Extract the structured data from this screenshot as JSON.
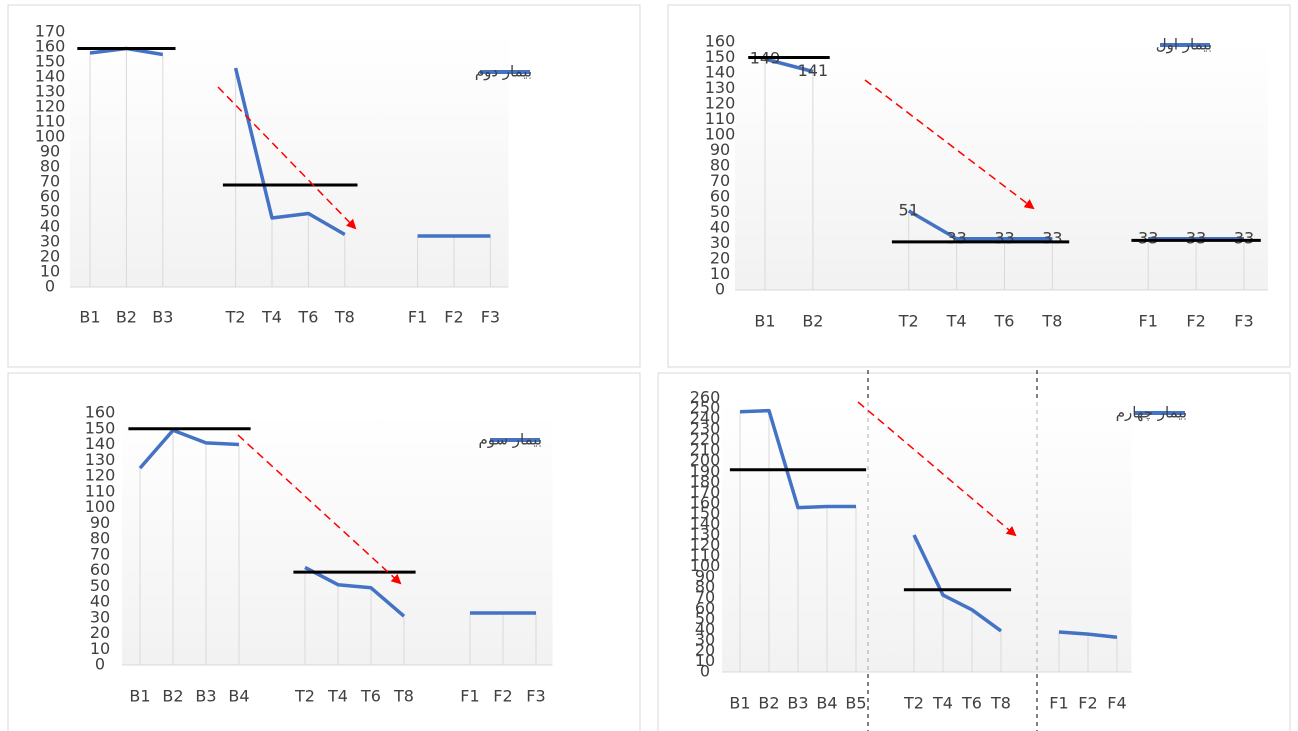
{
  "chart_data": [
    {
      "type": "line",
      "categories": [
        "B1",
        "B2",
        "B3",
        null,
        "T2",
        "T4",
        "T6",
        "T8",
        null,
        "F1",
        "F2",
        "F3"
      ],
      "series": [
        {
          "name": "بیمار دوم",
          "color": "#4472c4",
          "values": [
            156,
            159,
            155,
            null,
            146,
            46,
            49,
            35,
            null,
            34,
            34,
            34
          ]
        },
        {
          "color": "#000000",
          "values": [
            159,
            159,
            159,
            null,
            68,
            68,
            68,
            68,
            null,
            null,
            null,
            null
          ]
        }
      ],
      "ylim": [
        0,
        170
      ],
      "yticks": [
        0,
        10,
        20,
        30,
        40,
        50,
        60,
        70,
        80,
        90,
        100,
        110,
        120,
        130,
        140,
        150,
        160,
        170
      ]
    },
    {
      "type": "line",
      "categories": [
        "B1",
        "B2",
        null,
        "T2",
        "T4",
        "T6",
        "T8",
        null,
        "F1",
        "F2",
        "F3"
      ],
      "series": [
        {
          "name": "بیمار اول",
          "color": "#4472c4",
          "values": [
            149,
            141,
            null,
            51,
            33,
            33,
            33,
            null,
            33,
            33,
            33
          ],
          "data_labels": true
        },
        {
          "color": "#000000",
          "values": [
            150,
            150,
            null,
            31,
            31,
            31,
            31,
            null,
            32,
            32,
            32
          ]
        }
      ],
      "ylim": [
        0,
        160
      ],
      "yticks": [
        0,
        10,
        20,
        30,
        40,
        50,
        60,
        70,
        80,
        90,
        100,
        110,
        120,
        130,
        140,
        150,
        160
      ]
    },
    {
      "type": "line",
      "categories": [
        "B1",
        "B2",
        "B3",
        "B4",
        null,
        "T2",
        "T4",
        "T6",
        "T8",
        null,
        "F1",
        "F2",
        "F3"
      ],
      "series": [
        {
          "name": "بیمار سوم",
          "color": "#4472c4",
          "values": [
            125,
            149,
            141,
            140,
            null,
            62,
            51,
            49,
            31,
            null,
            33,
            33,
            33
          ]
        },
        {
          "color": "#000000",
          "values": [
            150,
            150,
            150,
            150,
            null,
            59,
            59,
            59,
            59,
            null,
            null,
            null,
            null
          ]
        }
      ],
      "ylim": [
        0,
        160
      ],
      "yticks": [
        0,
        10,
        20,
        30,
        40,
        50,
        60,
        70,
        80,
        90,
        100,
        110,
        120,
        130,
        140,
        150,
        160
      ]
    },
    {
      "type": "line",
      "categories": [
        "B1",
        "B2",
        "B3",
        "B4",
        "B5",
        null,
        "T2",
        "T4",
        "T6",
        "T8",
        null,
        "F1",
        "F2",
        "F4"
      ],
      "series": [
        {
          "name": "بیمار چهارم",
          "color": "#4472c4",
          "values": [
            247,
            248,
            156,
            157,
            157,
            null,
            130,
            73,
            59,
            39,
            null,
            38,
            36,
            33
          ]
        },
        {
          "color": "#000000",
          "values": [
            192,
            192,
            192,
            192,
            192,
            null,
            78,
            78,
            78,
            78,
            null,
            null,
            null,
            null
          ]
        }
      ],
      "ylim": [
        0,
        260
      ],
      "yticks": [
        0,
        10,
        20,
        30,
        40,
        50,
        60,
        70,
        80,
        90,
        100,
        110,
        120,
        130,
        140,
        150,
        160,
        170,
        180,
        190,
        200,
        210,
        220,
        230,
        240,
        250,
        260
      ]
    }
  ]
}
